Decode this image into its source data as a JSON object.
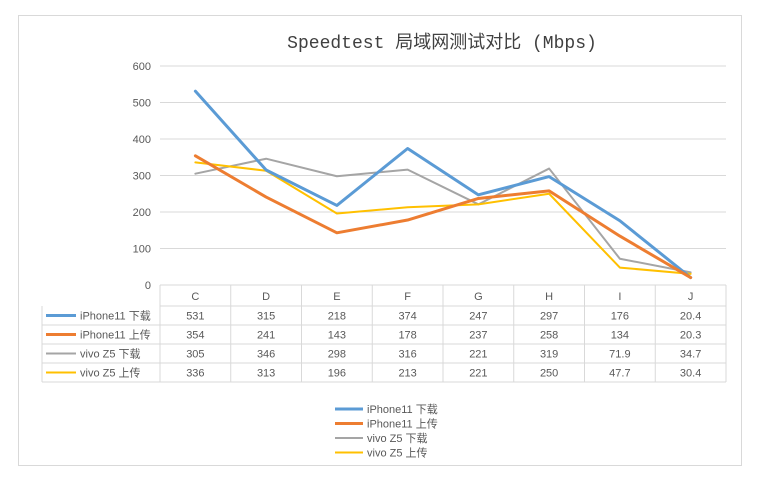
{
  "chart_data": {
    "type": "line",
    "title": "Speedtest 局域网测试对比 (Mbps)",
    "categories": [
      "C",
      "D",
      "E",
      "F",
      "G",
      "H",
      "I",
      "J"
    ],
    "ylim": [
      0,
      600
    ],
    "yticks": [
      0,
      100,
      200,
      300,
      400,
      500,
      600
    ],
    "grid": true,
    "legend_placement": "bottom",
    "data_table": true,
    "series": [
      {
        "name": "iPhone11 下载",
        "color": "#5b9bd5",
        "values": [
          531,
          315,
          218,
          374,
          247,
          297,
          176,
          20.4
        ]
      },
      {
        "name": "iPhone11 上传",
        "color": "#ed7d31",
        "values": [
          354,
          241,
          143,
          178,
          237,
          258,
          134,
          20.3
        ]
      },
      {
        "name": "vivo Z5 下载",
        "color": "#a5a5a5",
        "values": [
          305,
          346,
          298,
          316,
          221,
          319,
          71.9,
          34.7
        ]
      },
      {
        "name": "vivo Z5 上传",
        "color": "#ffc000",
        "values": [
          336,
          313,
          196,
          213,
          221,
          250,
          47.7,
          30.4
        ]
      }
    ]
  }
}
